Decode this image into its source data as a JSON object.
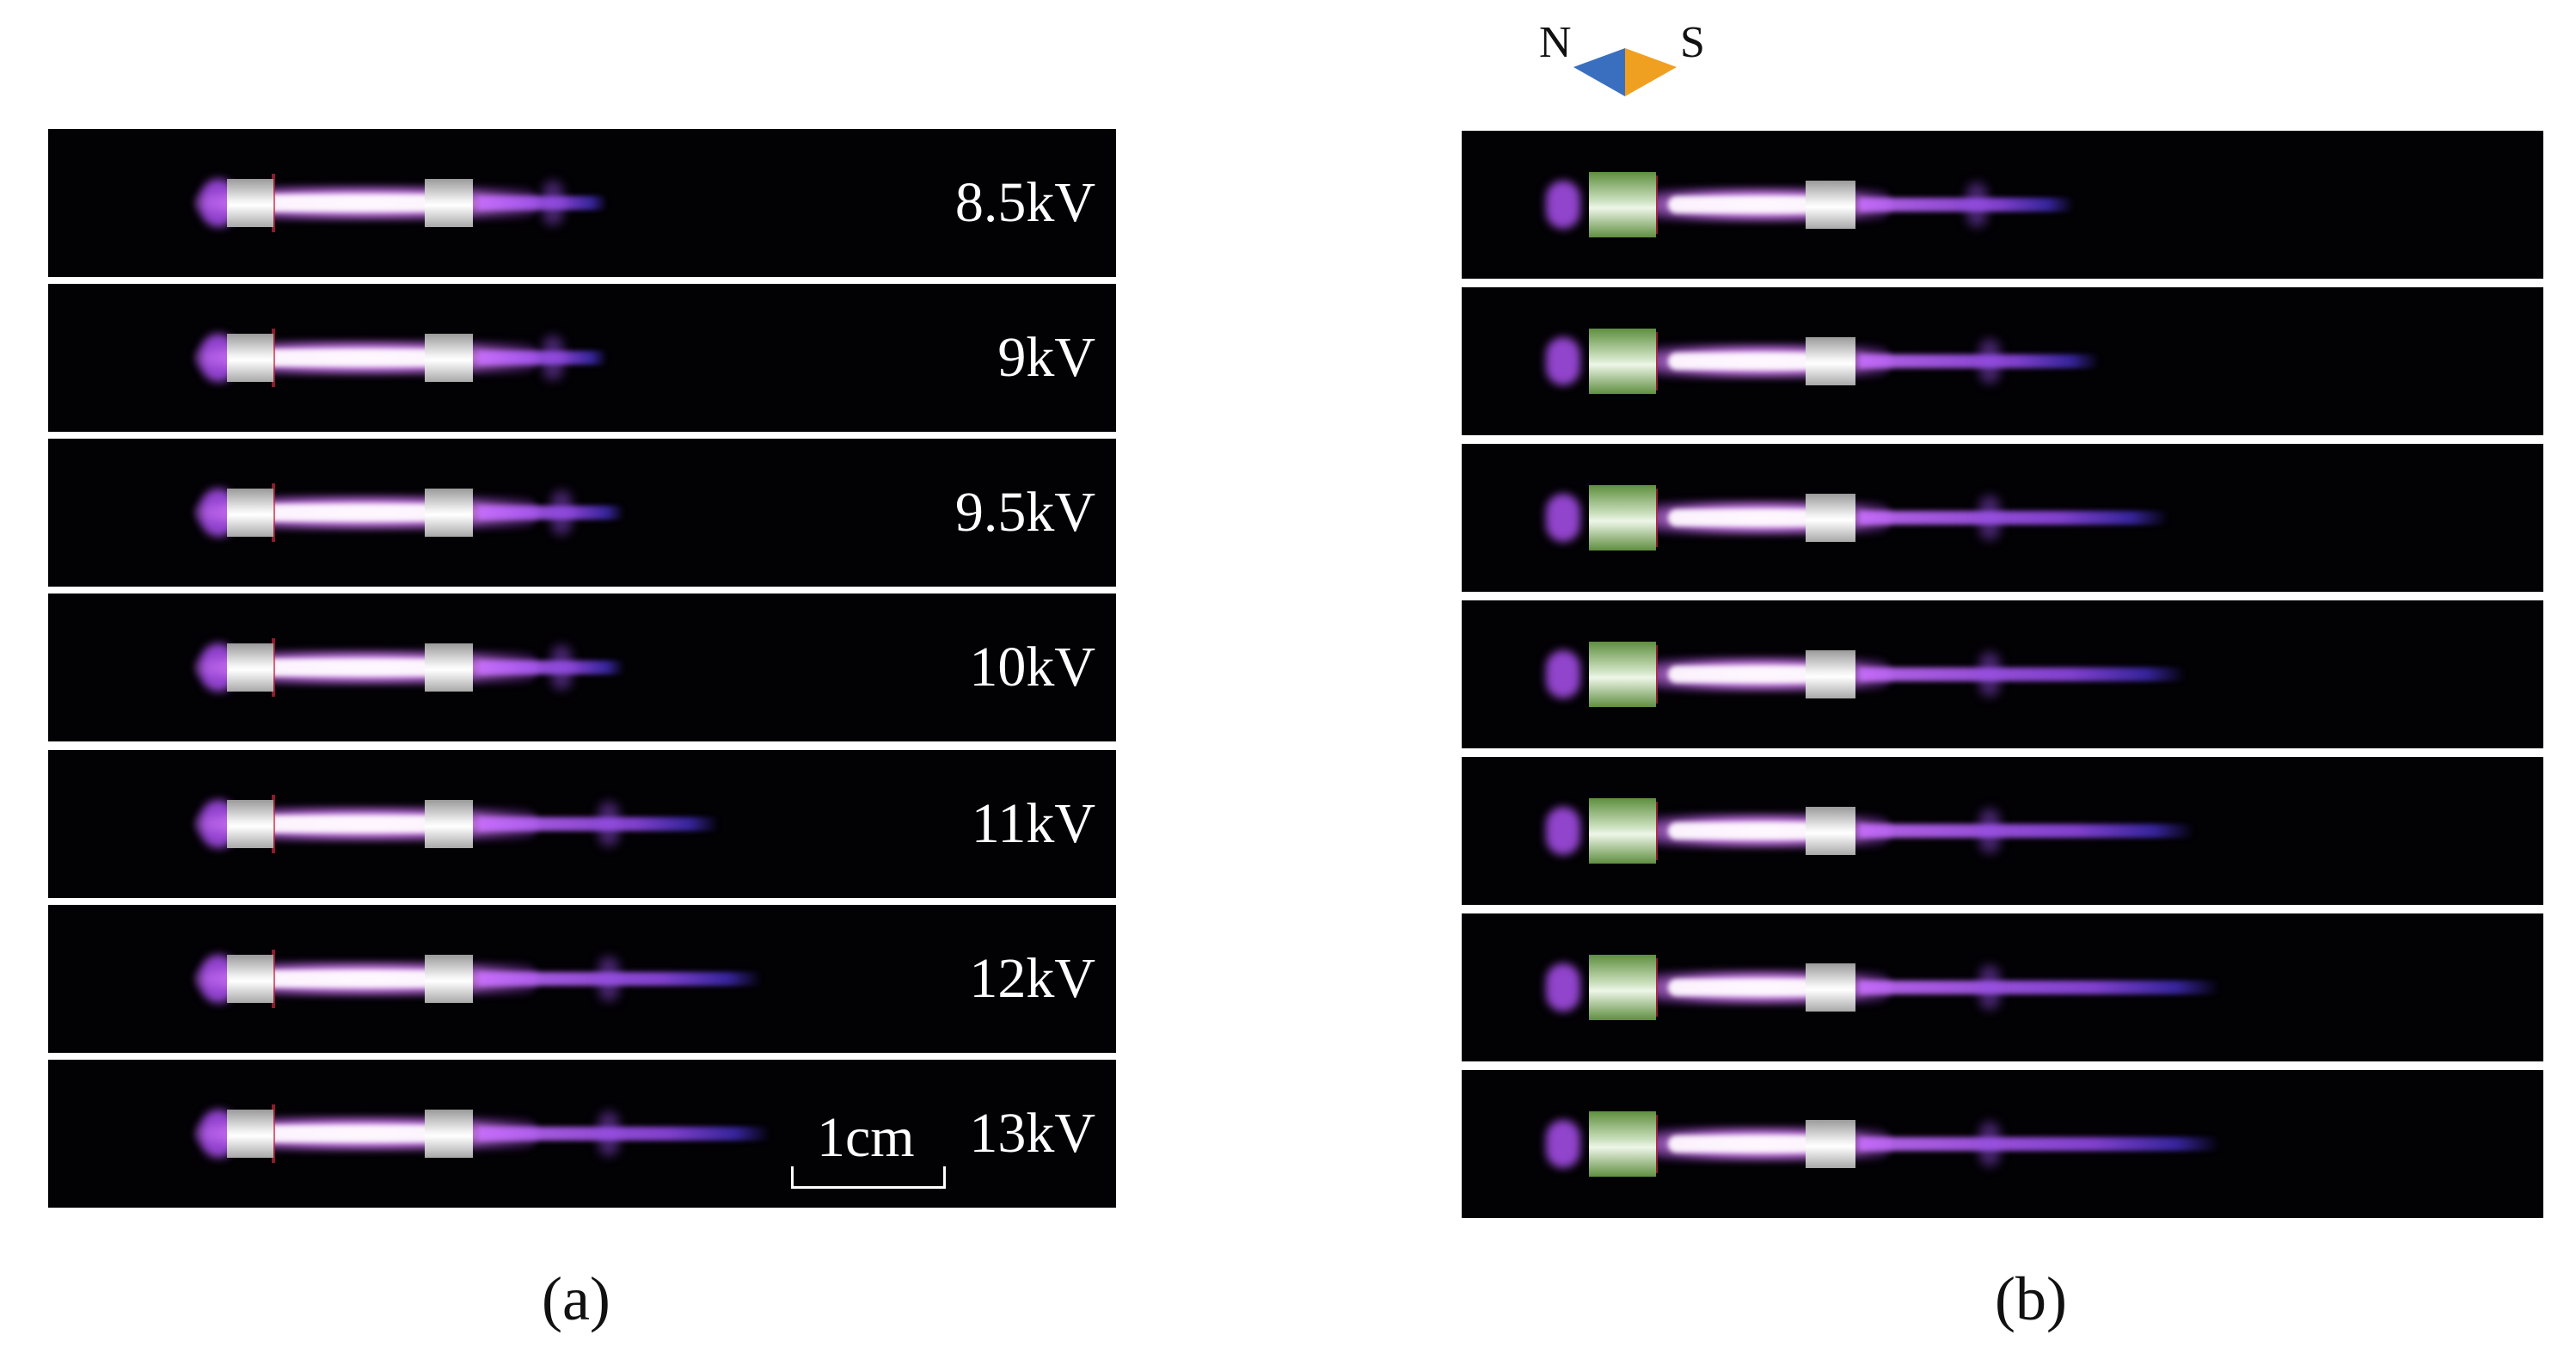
{
  "panel_a": {
    "label": "(a)",
    "voltages": [
      "8.5kV",
      "9kV",
      "9.5kV",
      "10kV",
      "11kV",
      "12kV",
      "13kV"
    ],
    "scale_label": "1cm"
  },
  "panel_b": {
    "label": "(b)",
    "compass": {
      "north": "N",
      "south": "S"
    }
  },
  "colors": {
    "background": "#020104",
    "plasma": "#c87cff",
    "jet_tip": "#5a3cff",
    "electrode": "#d9d9d9",
    "magnet": "#6a9a48",
    "compass_north": "#3a6fc0",
    "compass_south": "#f0a020"
  }
}
